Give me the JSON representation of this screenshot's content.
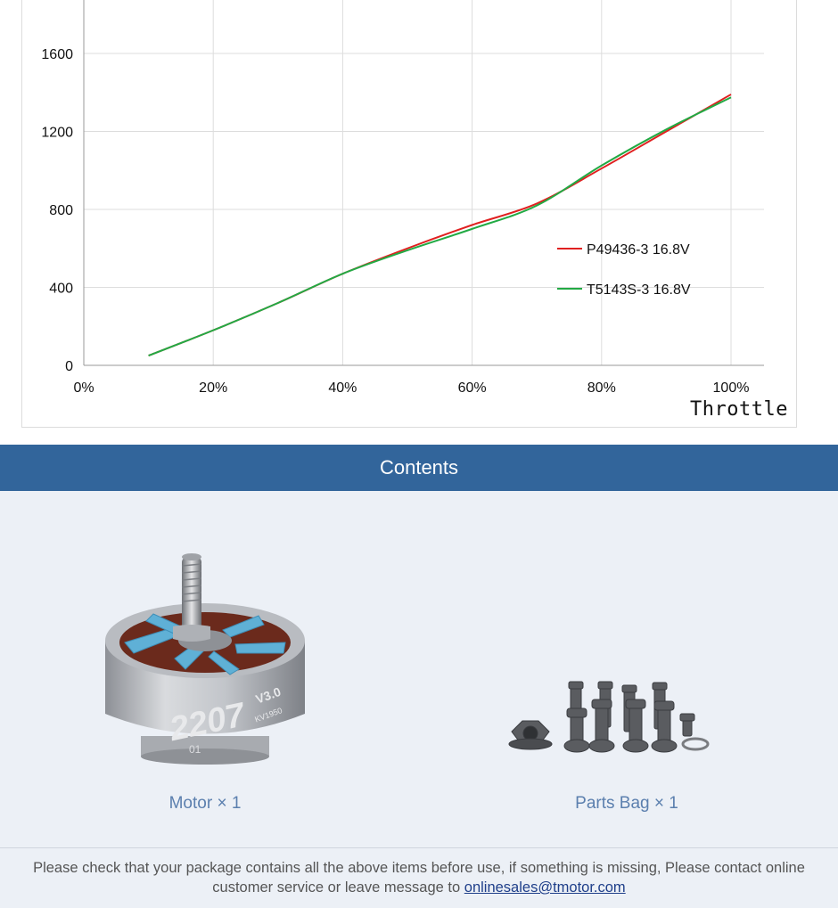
{
  "chart_data": {
    "type": "line",
    "xlabel": "Throttle",
    "ylabel": "",
    "x_ticks": [
      "0%",
      "20%",
      "40%",
      "60%",
      "80%",
      "100%"
    ],
    "y_ticks": [
      "0",
      "400",
      "800",
      "1200",
      "1600"
    ],
    "xlim": [
      0,
      100
    ],
    "ylim": [
      0,
      1600
    ],
    "grid": true,
    "legend_position": "center-right",
    "x": [
      10,
      20,
      30,
      40,
      50,
      60,
      70,
      80,
      90,
      100
    ],
    "series": [
      {
        "name": "P49436-3 16.8V",
        "color": "#e02020",
        "values": [
          50,
          180,
          320,
          470,
          600,
          720,
          830,
          1010,
          1200,
          1390
        ]
      },
      {
        "name": "T5143S-3 16.8V",
        "color": "#22aa44",
        "values": [
          50,
          180,
          320,
          470,
          590,
          700,
          820,
          1025,
          1210,
          1375
        ]
      }
    ]
  },
  "contents": {
    "title": "Contents",
    "items": [
      {
        "label": "Motor × 1"
      },
      {
        "label": "Parts Bag × 1"
      }
    ],
    "motor_marking": "2207",
    "motor_version": "V3.0",
    "motor_kv": "KV1950",
    "motor_base": "01"
  },
  "footer": {
    "text": "Please check that your package contains all the above items before use, if something is missing, Please contact online customer service or leave message to",
    "email": "onlinesales@tmotor.com"
  }
}
